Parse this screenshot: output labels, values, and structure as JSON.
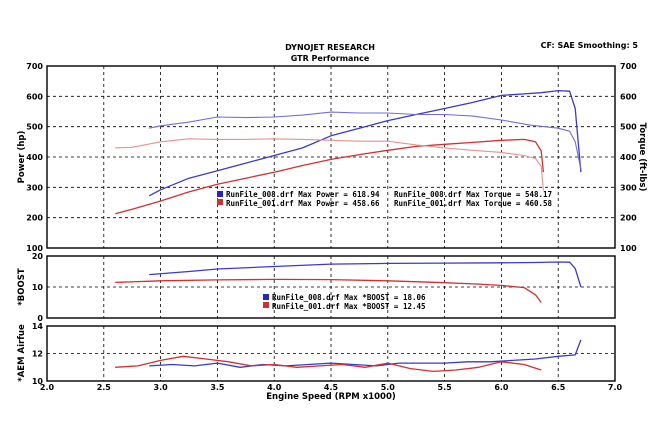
{
  "header": {
    "title": "DYNOJET RESEARCH",
    "subtitle": "GTR Performance",
    "settings": "CF: SAE  Smoothing: 5"
  },
  "colors": {
    "run_008": "#3a3ac8",
    "run_008_light": "#6f6fd8",
    "run_001": "#d23030",
    "run_001_light": "#e8918f"
  },
  "chart_data": [
    {
      "type": "line",
      "title": "",
      "xlabel": "Engine Speed (RPM x1000)",
      "ylabel": "Power (hp)",
      "ylabel_right": "Torque (ft-lbs)",
      "xlim": [
        2.0,
        7.0
      ],
      "ylim": [
        100,
        700
      ],
      "xticks": [
        "2.0",
        "2.5",
        "3.0",
        "3.5",
        "4.0",
        "4.5",
        "5.0",
        "5.5",
        "6.0",
        "6.5",
        "7.0"
      ],
      "yticks": [
        "100",
        "200",
        "300",
        "400",
        "500",
        "600",
        "700"
      ],
      "grid": true,
      "series": [
        {
          "name": "RunFile_008.drf Max Power = 618.94",
          "measure": "power",
          "run": "008",
          "x": [
            2.9,
            3.0,
            3.25,
            3.5,
            3.75,
            4.0,
            4.25,
            4.5,
            4.75,
            5.0,
            5.25,
            5.5,
            5.75,
            6.0,
            6.2,
            6.35,
            6.5,
            6.6,
            6.65,
            6.7
          ],
          "y": [
            272,
            292,
            330,
            355,
            380,
            405,
            430,
            470,
            495,
            520,
            540,
            560,
            580,
            603,
            608,
            612,
            619,
            617,
            560,
            350
          ]
        },
        {
          "name": "RunFile_008.drf Max Torque = 548.17",
          "measure": "torque",
          "run": "008",
          "x": [
            2.9,
            3.0,
            3.25,
            3.5,
            3.75,
            4.0,
            4.25,
            4.5,
            4.75,
            5.0,
            5.25,
            5.5,
            5.75,
            6.0,
            6.25,
            6.5,
            6.6,
            6.65,
            6.7
          ],
          "y": [
            495,
            503,
            515,
            532,
            530,
            532,
            538,
            548,
            545,
            545,
            540,
            540,
            535,
            522,
            505,
            495,
            485,
            450,
            360
          ]
        },
        {
          "name": "RunFile_001.drf Max Power = 458.66",
          "measure": "power",
          "run": "001",
          "x": [
            2.6,
            2.75,
            3.0,
            3.25,
            3.5,
            3.75,
            4.0,
            4.25,
            4.5,
            4.75,
            5.0,
            5.25,
            5.5,
            5.75,
            6.0,
            6.2,
            6.3,
            6.35,
            6.37
          ],
          "y": [
            213,
            228,
            255,
            285,
            310,
            330,
            350,
            372,
            392,
            408,
            422,
            435,
            442,
            448,
            455,
            458,
            450,
            420,
            350
          ]
        },
        {
          "name": "RunFile_001.drf Max Torque = 460.58",
          "measure": "torque",
          "run": "001",
          "x": [
            2.6,
            2.75,
            3.0,
            3.25,
            3.5,
            3.75,
            4.0,
            4.25,
            4.5,
            4.75,
            5.0,
            5.25,
            5.5,
            5.75,
            6.0,
            6.2,
            6.3,
            6.35,
            6.37
          ],
          "y": [
            430,
            432,
            450,
            460,
            458,
            458,
            460,
            458,
            455,
            452,
            452,
            440,
            430,
            422,
            415,
            405,
            395,
            370,
            290
          ]
        }
      ]
    },
    {
      "type": "line",
      "title": "",
      "xlabel": "",
      "ylabel": "*BOOST",
      "xlim": [
        2.0,
        7.0
      ],
      "ylim": [
        0,
        20
      ],
      "yticks": [
        "0",
        "10",
        "20"
      ],
      "grid": true,
      "series": [
        {
          "name": "RunFile_008.drf Max *BOOST = 18.06",
          "run": "008",
          "x": [
            2.9,
            3.25,
            3.5,
            4.0,
            4.5,
            5.0,
            5.5,
            6.0,
            6.3,
            6.5,
            6.6,
            6.65,
            6.7
          ],
          "y": [
            14.0,
            15.0,
            15.8,
            16.6,
            17.4,
            17.6,
            17.7,
            17.8,
            17.9,
            18.06,
            18.0,
            16.0,
            10.0
          ]
        },
        {
          "name": "RunFile_001.drf Max *BOOST = 12.45",
          "run": "001",
          "x": [
            2.6,
            3.0,
            3.5,
            4.0,
            4.5,
            5.0,
            5.5,
            5.75,
            6.0,
            6.2,
            6.3,
            6.35
          ],
          "y": [
            11.5,
            12.0,
            12.3,
            12.45,
            12.4,
            12.0,
            11.4,
            11.0,
            10.5,
            9.8,
            7.5,
            5.0
          ]
        }
      ]
    },
    {
      "type": "line",
      "title": "",
      "xlabel": "Engine Speed (RPM x1000)",
      "ylabel": "*AEM Airfue",
      "xlim": [
        2.0,
        7.0
      ],
      "ylim": [
        10,
        14
      ],
      "yticks": [
        "10",
        "12",
        "14"
      ],
      "grid": true,
      "series": [
        {
          "name": "RunFile_008",
          "run": "008",
          "x": [
            2.9,
            3.1,
            3.3,
            3.5,
            3.7,
            3.9,
            4.1,
            4.3,
            4.5,
            4.7,
            4.9,
            5.1,
            5.3,
            5.5,
            5.7,
            5.9,
            6.1,
            6.3,
            6.5,
            6.65,
            6.7
          ],
          "y": [
            11.1,
            11.2,
            11.1,
            11.3,
            11.0,
            11.2,
            11.1,
            11.2,
            11.3,
            11.2,
            11.1,
            11.3,
            11.3,
            11.3,
            11.4,
            11.4,
            11.5,
            11.6,
            11.8,
            11.9,
            13.0
          ]
        },
        {
          "name": "RunFile_001",
          "run": "001",
          "x": [
            2.6,
            2.8,
            3.0,
            3.2,
            3.4,
            3.6,
            3.8,
            4.0,
            4.2,
            4.4,
            4.6,
            4.8,
            5.0,
            5.2,
            5.4,
            5.6,
            5.8,
            6.0,
            6.2,
            6.35
          ],
          "y": [
            11.0,
            11.1,
            11.5,
            11.8,
            11.6,
            11.4,
            11.1,
            11.2,
            11.0,
            11.1,
            11.2,
            11.0,
            11.3,
            10.9,
            10.7,
            10.8,
            11.0,
            11.4,
            11.2,
            10.8
          ]
        }
      ]
    }
  ]
}
